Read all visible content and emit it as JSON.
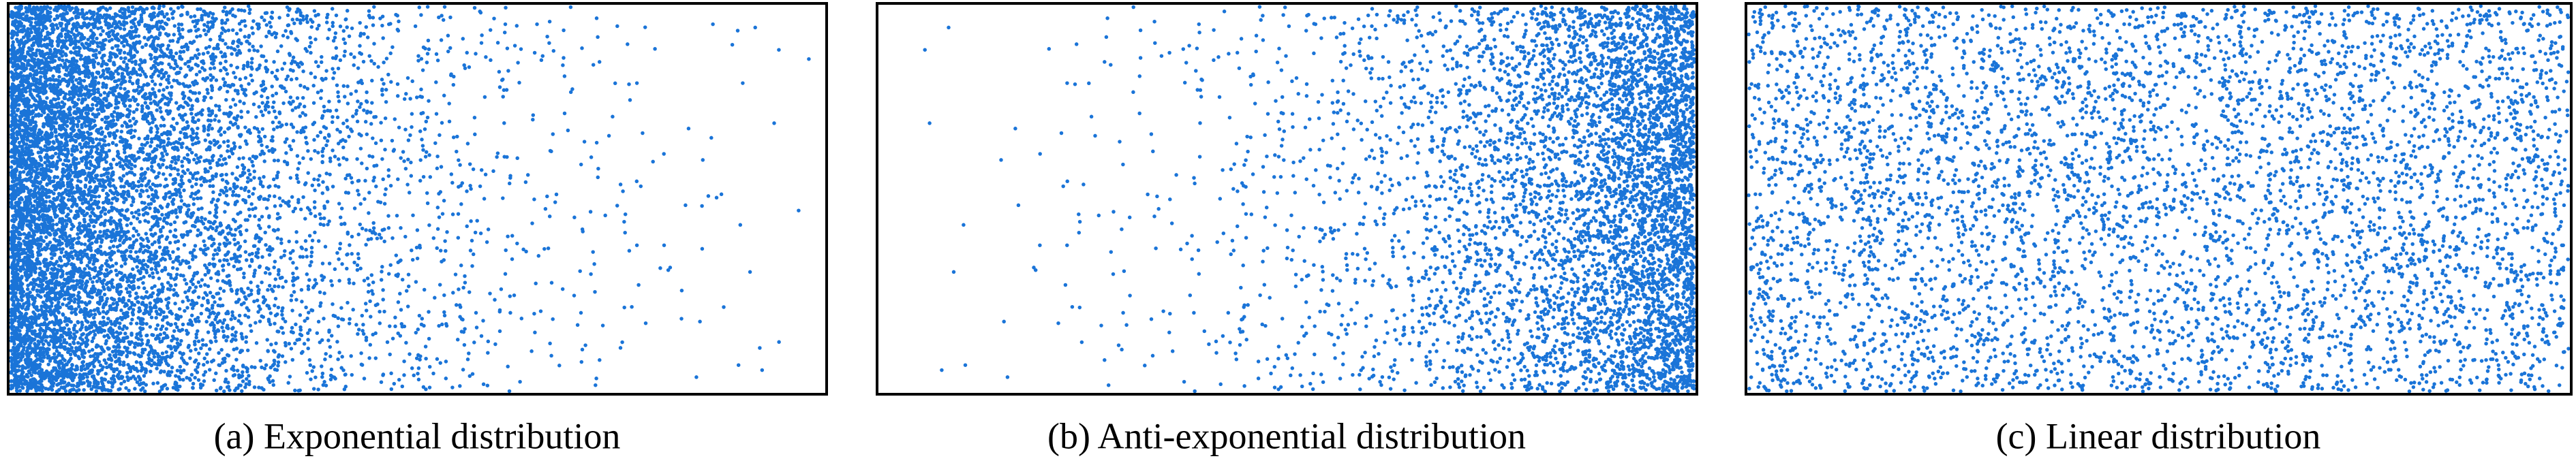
{
  "panels": [
    {
      "caption": "(a) Exponential distribution"
    },
    {
      "caption": "(b) Anti-exponential distribution"
    },
    {
      "caption": "(c) Linear distribution"
    }
  ]
}
